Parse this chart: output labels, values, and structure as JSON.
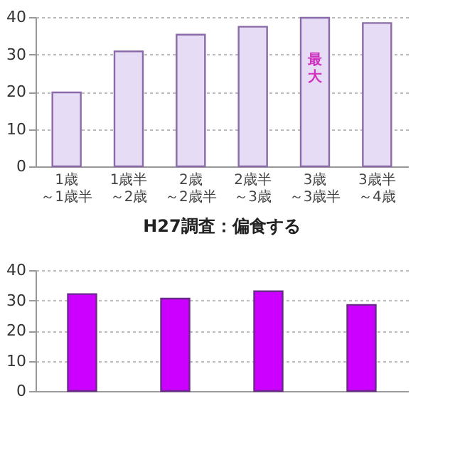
{
  "chart_data": [
    {
      "type": "bar",
      "categories": [
        "1歳～1歳半",
        "1歳半～2歳",
        "2歳～2歳半",
        "2歳半～3歳",
        "3歳～3歳半",
        "3歳半～4歳"
      ],
      "values": [
        19.8,
        30.8,
        35.3,
        37.4,
        39.8,
        38.4
      ],
      "color": "#e6dcf5",
      "ylim": [
        0,
        40
      ],
      "yticks": [
        0,
        10,
        20,
        30,
        40
      ],
      "grid": "y",
      "annotations": [
        "最大"
      ]
    },
    {
      "type": "bar",
      "title": "H27調査：偏食する",
      "categories": [
        null,
        null,
        null,
        null
      ],
      "values": [
        32.1,
        30.6,
        33.0,
        28.5
      ],
      "color": "#cc00ff",
      "ylim": [
        0,
        40
      ],
      "yticks": [
        0,
        10,
        20,
        30,
        40
      ],
      "grid": "y"
    }
  ]
}
